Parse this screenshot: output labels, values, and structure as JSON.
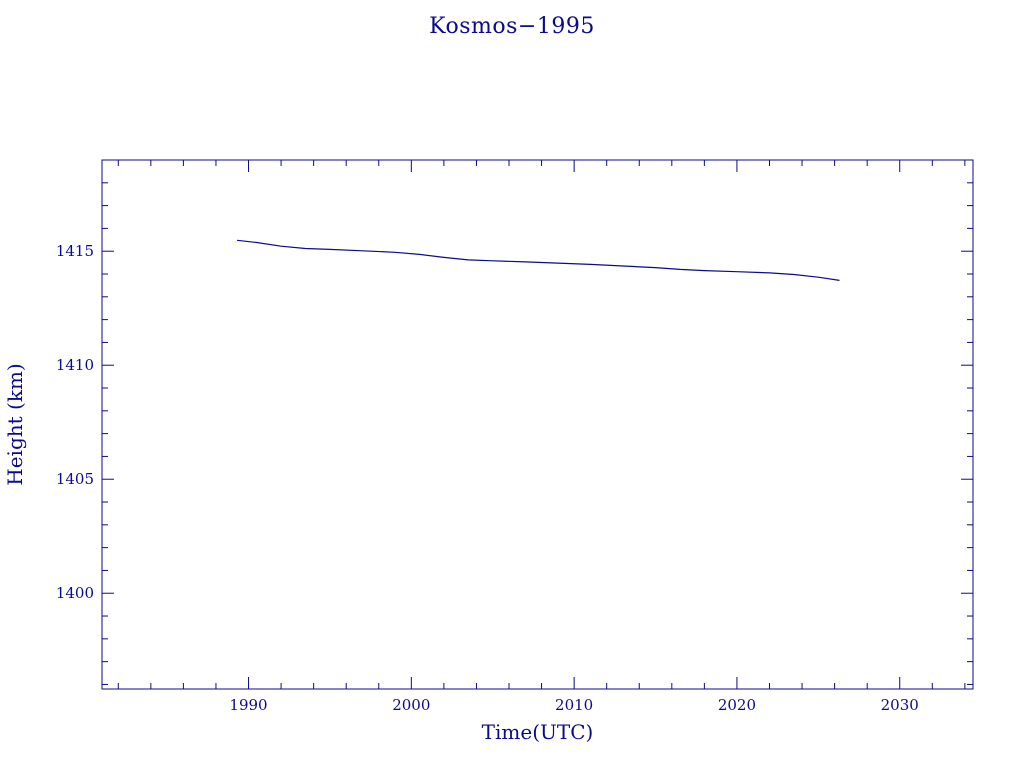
{
  "chart_data": {
    "type": "line",
    "title": "Kosmos−1995",
    "xlabel": "Time(UTC)",
    "ylabel": "Height (km)",
    "xlim": [
      1981.0,
      2034.5
    ],
    "ylim": [
      1395.8,
      1419.0
    ],
    "xticks": [
      1990,
      2000,
      2010,
      2020,
      2030
    ],
    "yticks": [
      1400,
      1405,
      1410,
      1415
    ],
    "xtick_labels": [
      "1990",
      "2000",
      "2010",
      "2020",
      "2030"
    ],
    "ytick_labels": [
      "1400",
      "1405",
      "1410",
      "1415"
    ],
    "x_minor_step": 2,
    "y_minor_step": 1,
    "grid": false,
    "legend": "none",
    "color": "#0a0a8c",
    "series": [
      {
        "x": [
          1989.3,
          1990.5,
          1992.0,
          1993.5,
          1995.0,
          1997.0,
          1999.0,
          2000.5,
          2002.0,
          2003.5,
          2005.0,
          2007.0,
          2009.0,
          2011.0,
          2013.0,
          2015.0,
          2016.5,
          2018.0,
          2020.0,
          2022.0,
          2023.5,
          2025.0,
          2026.3
        ],
        "y": [
          1415.48,
          1415.38,
          1415.22,
          1415.12,
          1415.08,
          1415.02,
          1414.95,
          1414.86,
          1414.73,
          1414.62,
          1414.58,
          1414.53,
          1414.48,
          1414.42,
          1414.35,
          1414.28,
          1414.2,
          1414.15,
          1414.1,
          1414.05,
          1413.98,
          1413.86,
          1413.72
        ]
      }
    ]
  }
}
